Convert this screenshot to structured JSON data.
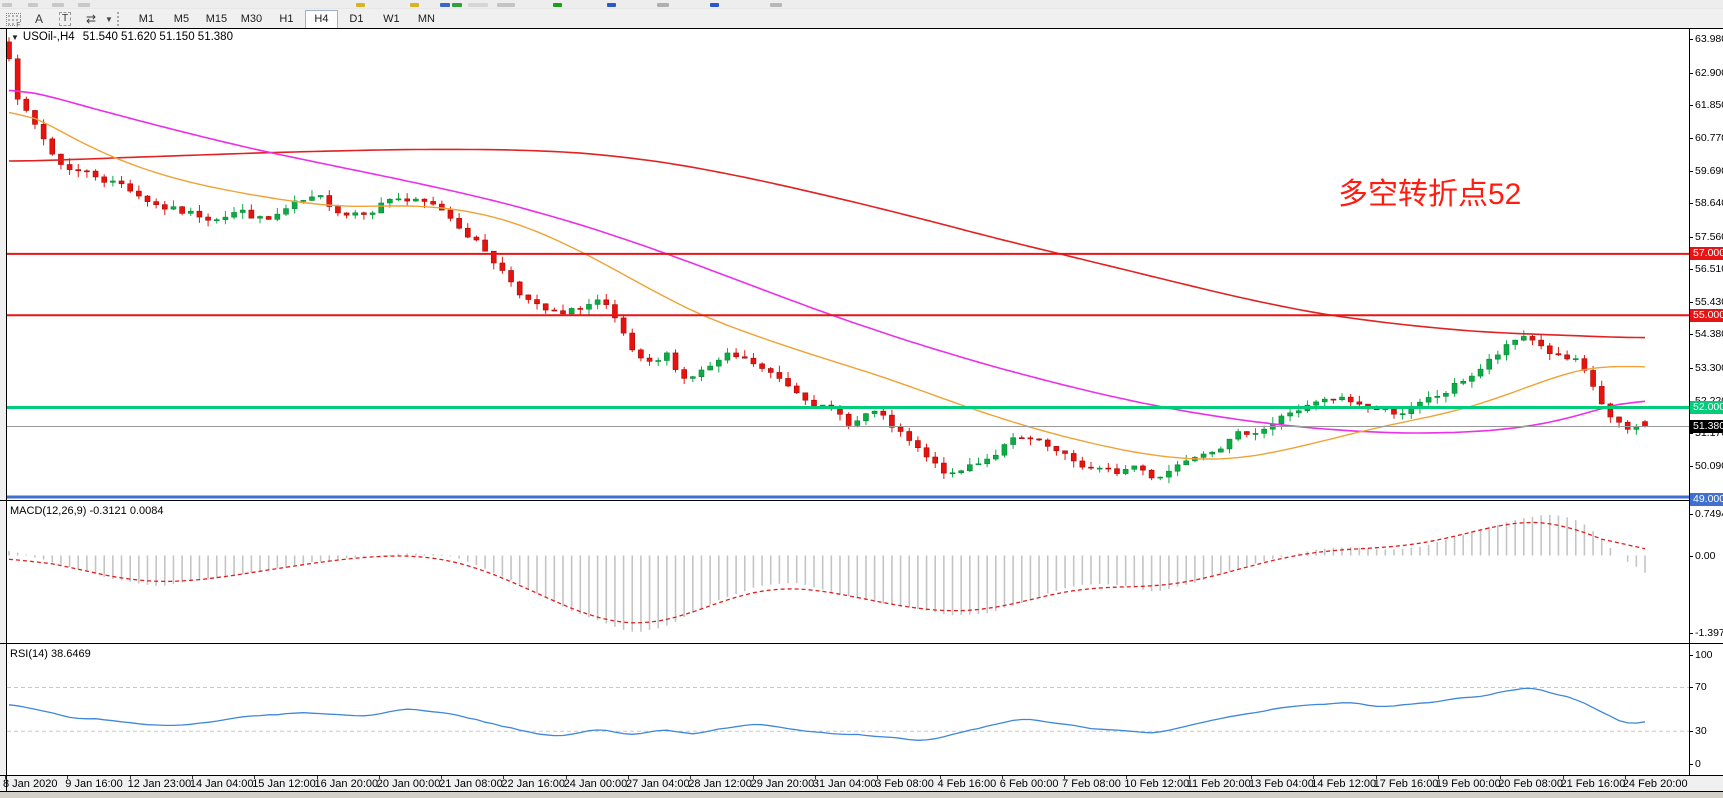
{
  "toolbar": {
    "tool_icons": [
      {
        "name": "grid-snap-icon",
        "glyph": "F"
      },
      {
        "name": "text-label-icon",
        "glyph": "A"
      },
      {
        "name": "text-box-icon",
        "glyph": "T"
      },
      {
        "name": "arrow-objects-icon",
        "glyph": "⇄"
      }
    ],
    "timeframes": [
      "M1",
      "M5",
      "M15",
      "M30",
      "H1",
      "H4",
      "D1",
      "W1",
      "MN"
    ],
    "active_timeframe": "H4"
  },
  "chart": {
    "symbol_title": "USOil-,H4",
    "ohlc_readout": "51.540 51.620 51.150 51.380",
    "annotation": {
      "text": "多空转折点52",
      "color": "#ff1c10"
    },
    "price_ticks": [
      {
        "t": "63.980",
        "v": 63.98
      },
      {
        "t": "62.900",
        "v": 62.9
      },
      {
        "t": "61.850",
        "v": 61.85
      },
      {
        "t": "60.770",
        "v": 60.77
      },
      {
        "t": "59.690",
        "v": 59.69
      },
      {
        "t": "58.640",
        "v": 58.64
      },
      {
        "t": "57.560",
        "v": 57.56
      },
      {
        "t": "56.510",
        "v": 56.51
      },
      {
        "t": "55.430",
        "v": 55.43
      },
      {
        "t": "54.380",
        "v": 54.38
      },
      {
        "t": "53.300",
        "v": 53.3
      },
      {
        "t": "52.220",
        "v": 52.22
      },
      {
        "t": "51.170",
        "v": 51.17
      },
      {
        "t": "50.090",
        "v": 50.09
      }
    ],
    "hlines": [
      {
        "value": 57.0,
        "label": "57.000",
        "color": "#e81414",
        "label_fg": "#ffffff",
        "thickness": 2
      },
      {
        "value": 55.0,
        "label": "55.000",
        "color": "#e81414",
        "label_fg": "#ffffff",
        "thickness": 2
      },
      {
        "value": 52.0,
        "label": "52.000",
        "color": "#00cc7a",
        "label_fg": "#ffffff",
        "thickness": 3
      },
      {
        "value": 49.0,
        "label": "49.000",
        "color": "#3f6fd1",
        "label_fg": "#ffffff",
        "thickness": 3
      }
    ],
    "current_price": {
      "value": 51.38,
      "label": "51.380",
      "line_color": "#9a9a9a",
      "label_bg": "#000000",
      "label_fg": "#ffffff"
    }
  },
  "macd_panel": {
    "label": "MACD(12,26,9) -0.3121 0.0084",
    "ticks": [
      {
        "t": "0.7494",
        "v": 0.7494
      },
      {
        "t": "0.00",
        "v": 0.0
      },
      {
        "t": "-1.3973",
        "v": -1.3973
      }
    ]
  },
  "rsi_panel": {
    "label": "RSI(14) 38.6469",
    "ticks": [
      {
        "t": "100",
        "v": 100
      },
      {
        "t": "70",
        "v": 70
      },
      {
        "t": "30",
        "v": 30
      },
      {
        "t": "0",
        "v": 0
      }
    ],
    "level_lines": [
      70,
      30
    ]
  },
  "time_axis": [
    "8 Jan 2020",
    "9 Jan 16:00",
    "12 Jan 23:00",
    "14 Jan 04:00",
    "15 Jan 12:00",
    "16 Jan 20:00",
    "20 Jan 00:00",
    "21 Jan 08:00",
    "22 Jan 16:00",
    "24 Jan 00:00",
    "27 Jan 04:00",
    "28 Jan 12:00",
    "29 Jan 20:00",
    "31 Jan 04:00",
    "3 Feb 08:00",
    "4 Feb 16:00",
    "6 Feb 00:00",
    "7 Feb 08:00",
    "10 Feb 12:00",
    "11 Feb 20:00",
    "13 Feb 04:00",
    "14 Feb 12:00",
    "17 Feb 16:00",
    "19 Feb 00:00",
    "20 Feb 08:00",
    "21 Feb 16:00",
    "24 Feb 20:00"
  ],
  "chart_data": {
    "type": "candlestick",
    "symbol": "USOil-",
    "timeframe": "H4",
    "bars": 190,
    "price_range": [
      49.0,
      64.3
    ],
    "last_ohlc": {
      "open": 51.54,
      "high": 51.62,
      "low": 51.15,
      "close": 51.38
    },
    "last_price": 51.38,
    "up_color": "#0cab45",
    "up_edge": "#068a33",
    "down_color": "#e8130e",
    "down_edge": "#a50b08",
    "close_path_anchors": [
      [
        0,
        63.35
      ],
      [
        0.006,
        62.1
      ],
      [
        0.014,
        61.3
      ],
      [
        0.03,
        59.95
      ],
      [
        0.05,
        59.6
      ],
      [
        0.07,
        59.25
      ],
      [
        0.09,
        58.65
      ],
      [
        0.105,
        58.35
      ],
      [
        0.12,
        58.2
      ],
      [
        0.14,
        58.45
      ],
      [
        0.158,
        58.05
      ],
      [
        0.175,
        58.55
      ],
      [
        0.19,
        58.7
      ],
      [
        0.205,
        58.35
      ],
      [
        0.22,
        58.5
      ],
      [
        0.235,
        58.9
      ],
      [
        0.25,
        58.65
      ],
      [
        0.265,
        58.4
      ],
      [
        0.28,
        57.75
      ],
      [
        0.295,
        56.9
      ],
      [
        0.31,
        55.95
      ],
      [
        0.325,
        55.15
      ],
      [
        0.34,
        54.9
      ],
      [
        0.352,
        55.3
      ],
      [
        0.362,
        55.5
      ],
      [
        0.374,
        54.35
      ],
      [
        0.384,
        53.45
      ],
      [
        0.393,
        53.2
      ],
      [
        0.402,
        53.6
      ],
      [
        0.413,
        52.95
      ],
      [
        0.426,
        53.25
      ],
      [
        0.44,
        53.6
      ],
      [
        0.455,
        53.35
      ],
      [
        0.468,
        52.95
      ],
      [
        0.48,
        52.6
      ],
      [
        0.492,
        52.3
      ],
      [
        0.503,
        51.85
      ],
      [
        0.515,
        51.45
      ],
      [
        0.527,
        51.9
      ],
      [
        0.54,
        51.3
      ],
      [
        0.553,
        50.65
      ],
      [
        0.565,
        50.05
      ],
      [
        0.578,
        49.7
      ],
      [
        0.588,
        50.1
      ],
      [
        0.6,
        50.45
      ],
      [
        0.612,
        50.9
      ],
      [
        0.625,
        50.85
      ],
      [
        0.638,
        50.5
      ],
      [
        0.65,
        50.15
      ],
      [
        0.662,
        50.0
      ],
      [
        0.675,
        49.8
      ],
      [
        0.688,
        50.1
      ],
      [
        0.7,
        49.75
      ],
      [
        0.712,
        50.1
      ],
      [
        0.725,
        50.6
      ],
      [
        0.74,
        50.9
      ],
      [
        0.755,
        51.15
      ],
      [
        0.77,
        51.45
      ],
      [
        0.785,
        51.9
      ],
      [
        0.8,
        52.1
      ],
      [
        0.815,
        52.2
      ],
      [
        0.83,
        52.0
      ],
      [
        0.845,
        51.85
      ],
      [
        0.86,
        52.0
      ],
      [
        0.875,
        52.35
      ],
      [
        0.89,
        52.9
      ],
      [
        0.905,
        53.5
      ],
      [
        0.918,
        54.0
      ],
      [
        0.928,
        54.35
      ],
      [
        0.938,
        53.95
      ],
      [
        0.948,
        53.6
      ],
      [
        0.958,
        53.4
      ],
      [
        0.968,
        52.6
      ],
      [
        0.978,
        51.65
      ],
      [
        0.988,
        51.15
      ],
      [
        1,
        51.38
      ]
    ],
    "moving_averages": [
      {
        "name": "slow-ma",
        "color": "#e02222",
        "width": 1.6,
        "anchors": [
          [
            0,
            60.0
          ],
          [
            0.08,
            60.15
          ],
          [
            0.16,
            60.3
          ],
          [
            0.24,
            60.4
          ],
          [
            0.3,
            60.4
          ],
          [
            0.35,
            60.3
          ],
          [
            0.4,
            60.0
          ],
          [
            0.45,
            59.5
          ],
          [
            0.5,
            58.9
          ],
          [
            0.55,
            58.25
          ],
          [
            0.6,
            57.55
          ],
          [
            0.65,
            56.9
          ],
          [
            0.7,
            56.25
          ],
          [
            0.75,
            55.6
          ],
          [
            0.8,
            55.05
          ],
          [
            0.85,
            54.7
          ],
          [
            0.9,
            54.45
          ],
          [
            0.95,
            54.35
          ],
          [
            1,
            54.25
          ]
        ]
      },
      {
        "name": "medium-ma",
        "color": "#ea30ea",
        "width": 1.6,
        "anchors": [
          [
            0,
            62.5
          ],
          [
            0.05,
            61.75
          ],
          [
            0.1,
            61.05
          ],
          [
            0.15,
            60.4
          ],
          [
            0.2,
            59.85
          ],
          [
            0.25,
            59.3
          ],
          [
            0.3,
            58.7
          ],
          [
            0.35,
            57.95
          ],
          [
            0.4,
            57.05
          ],
          [
            0.45,
            56.05
          ],
          [
            0.5,
            55.05
          ],
          [
            0.55,
            54.15
          ],
          [
            0.6,
            53.35
          ],
          [
            0.65,
            52.65
          ],
          [
            0.7,
            52.05
          ],
          [
            0.75,
            51.6
          ],
          [
            0.8,
            51.3
          ],
          [
            0.85,
            51.15
          ],
          [
            0.9,
            51.2
          ],
          [
            0.94,
            51.45
          ],
          [
            0.97,
            51.9
          ],
          [
            1,
            52.4
          ]
        ]
      },
      {
        "name": "fast-ma",
        "color": "#f0a236",
        "width": 1.4,
        "anchors": [
          [
            0,
            62.0
          ],
          [
            0.03,
            61.0
          ],
          [
            0.06,
            60.2
          ],
          [
            0.09,
            59.6
          ],
          [
            0.12,
            59.2
          ],
          [
            0.15,
            58.9
          ],
          [
            0.18,
            58.65
          ],
          [
            0.21,
            58.5
          ],
          [
            0.24,
            58.6
          ],
          [
            0.27,
            58.5
          ],
          [
            0.3,
            58.2
          ],
          [
            0.33,
            57.6
          ],
          [
            0.36,
            56.8
          ],
          [
            0.39,
            55.9
          ],
          [
            0.42,
            55.05
          ],
          [
            0.45,
            54.45
          ],
          [
            0.48,
            53.9
          ],
          [
            0.51,
            53.4
          ],
          [
            0.54,
            52.9
          ],
          [
            0.57,
            52.3
          ],
          [
            0.6,
            51.75
          ],
          [
            0.63,
            51.25
          ],
          [
            0.66,
            50.85
          ],
          [
            0.69,
            50.5
          ],
          [
            0.72,
            50.3
          ],
          [
            0.75,
            50.3
          ],
          [
            0.78,
            50.6
          ],
          [
            0.81,
            51.0
          ],
          [
            0.84,
            51.4
          ],
          [
            0.87,
            51.7
          ],
          [
            0.9,
            52.1
          ],
          [
            0.93,
            52.7
          ],
          [
            0.955,
            53.2
          ],
          [
            0.98,
            53.45
          ],
          [
            1,
            53.2
          ]
        ]
      }
    ],
    "macd": {
      "params": "12,26,9",
      "main_value": -0.3121,
      "signal_value": 0.0084,
      "range": [
        -1.585,
        0.97
      ],
      "histogram_color": "#c4c4c4",
      "signal_color": "#e02020",
      "main_anchors": [
        [
          0,
          0.1
        ],
        [
          0.03,
          -0.15
        ],
        [
          0.06,
          -0.4
        ],
        [
          0.09,
          -0.55
        ],
        [
          0.12,
          -0.45
        ],
        [
          0.15,
          -0.3
        ],
        [
          0.18,
          -0.15
        ],
        [
          0.21,
          -0.05
        ],
        [
          0.24,
          0.05
        ],
        [
          0.27,
          0.0
        ],
        [
          0.3,
          -0.35
        ],
        [
          0.33,
          -0.8
        ],
        [
          0.36,
          -1.2
        ],
        [
          0.38,
          -1.4
        ],
        [
          0.4,
          -1.3
        ],
        [
          0.42,
          -1.0
        ],
        [
          0.44,
          -0.75
        ],
        [
          0.46,
          -0.55
        ],
        [
          0.48,
          -0.5
        ],
        [
          0.5,
          -0.62
        ],
        [
          0.52,
          -0.78
        ],
        [
          0.55,
          -0.95
        ],
        [
          0.58,
          -1.1
        ],
        [
          0.6,
          -1.05
        ],
        [
          0.62,
          -0.85
        ],
        [
          0.64,
          -0.62
        ],
        [
          0.66,
          -0.5
        ],
        [
          0.68,
          -0.55
        ],
        [
          0.7,
          -0.65
        ],
        [
          0.72,
          -0.55
        ],
        [
          0.74,
          -0.35
        ],
        [
          0.76,
          -0.15
        ],
        [
          0.78,
          0.0
        ],
        [
          0.8,
          0.1
        ],
        [
          0.82,
          0.15
        ],
        [
          0.84,
          0.1
        ],
        [
          0.86,
          0.15
        ],
        [
          0.88,
          0.3
        ],
        [
          0.9,
          0.5
        ],
        [
          0.92,
          0.65
        ],
        [
          0.94,
          0.75
        ],
        [
          0.955,
          0.7
        ],
        [
          0.965,
          0.55
        ],
        [
          0.975,
          0.25
        ],
        [
          0.985,
          -0.05
        ],
        [
          1,
          -0.31
        ]
      ]
    },
    "rsi": {
      "period": 14,
      "value": 38.6469,
      "range": [
        0,
        100
      ],
      "color": "#3f87d9",
      "anchors": [
        [
          0,
          55
        ],
        [
          0.02,
          48
        ],
        [
          0.04,
          42
        ],
        [
          0.06,
          40
        ],
        [
          0.08,
          37
        ],
        [
          0.1,
          34
        ],
        [
          0.12,
          38
        ],
        [
          0.14,
          43
        ],
        [
          0.16,
          45
        ],
        [
          0.18,
          47
        ],
        [
          0.2,
          45
        ],
        [
          0.22,
          44
        ],
        [
          0.24,
          51
        ],
        [
          0.26,
          48
        ],
        [
          0.28,
          43
        ],
        [
          0.3,
          35
        ],
        [
          0.32,
          28
        ],
        [
          0.34,
          25
        ],
        [
          0.36,
          33
        ],
        [
          0.38,
          27
        ],
        [
          0.4,
          31
        ],
        [
          0.42,
          27
        ],
        [
          0.44,
          34
        ],
        [
          0.46,
          36
        ],
        [
          0.48,
          31
        ],
        [
          0.5,
          28
        ],
        [
          0.52,
          26
        ],
        [
          0.54,
          24
        ],
        [
          0.56,
          21
        ],
        [
          0.58,
          28
        ],
        [
          0.6,
          36
        ],
        [
          0.62,
          41
        ],
        [
          0.64,
          37
        ],
        [
          0.66,
          33
        ],
        [
          0.68,
          30
        ],
        [
          0.7,
          28
        ],
        [
          0.72,
          35
        ],
        [
          0.74,
          42
        ],
        [
          0.76,
          47
        ],
        [
          0.78,
          52
        ],
        [
          0.8,
          55
        ],
        [
          0.82,
          56
        ],
        [
          0.84,
          52
        ],
        [
          0.86,
          55
        ],
        [
          0.88,
          58
        ],
        [
          0.9,
          62
        ],
        [
          0.92,
          68
        ],
        [
          0.93,
          71
        ],
        [
          0.94,
          66
        ],
        [
          0.95,
          63
        ],
        [
          0.96,
          58
        ],
        [
          0.97,
          50
        ],
        [
          0.98,
          42
        ],
        [
          0.99,
          36
        ],
        [
          1,
          38.65
        ]
      ]
    },
    "horizontal_lines": [
      57.0,
      55.0,
      52.0,
      49.0
    ]
  }
}
